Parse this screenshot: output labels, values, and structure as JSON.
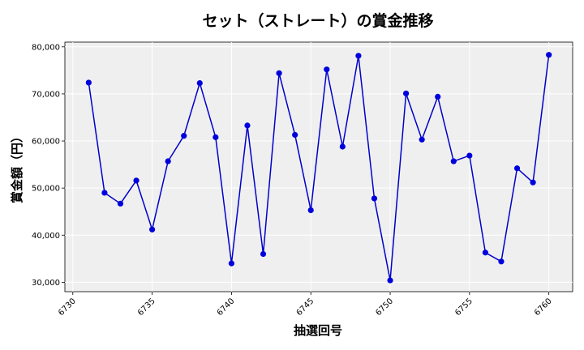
{
  "chart_data": {
    "type": "line",
    "title": "セット（ストレート）の賞金推移",
    "xlabel": "抽選回号",
    "ylabel": "賞金額（円）",
    "xlim": [
      6729.5,
      6761.5
    ],
    "ylim": [
      28000,
      81000
    ],
    "xticks": [
      6730,
      6735,
      6740,
      6745,
      6750,
      6755,
      6760
    ],
    "xtick_labels": [
      "6730",
      "6735",
      "6740",
      "6745",
      "6750",
      "6755",
      "6760"
    ],
    "yticks": [
      30000,
      40000,
      50000,
      60000,
      70000,
      80000
    ],
    "ytick_labels": [
      "30,000",
      "40,000",
      "50,000",
      "60,000",
      "70,000",
      "80,000"
    ],
    "grid": true,
    "colors": {
      "line": "#0000cc",
      "marker": "#0000dd",
      "plot_bg": "#efefef",
      "grid": "#ffffff"
    },
    "x": [
      6731,
      6732,
      6733,
      6734,
      6735,
      6736,
      6737,
      6738,
      6739,
      6740,
      6741,
      6742,
      6743,
      6744,
      6745,
      6746,
      6747,
      6748,
      6749,
      6750,
      6751,
      6752,
      6753,
      6754,
      6755,
      6756,
      6757,
      6758,
      6759,
      6760
    ],
    "y": [
      72400,
      49000,
      46700,
      51600,
      41200,
      55700,
      61100,
      72300,
      60800,
      34000,
      63300,
      36000,
      74400,
      61300,
      45300,
      75200,
      58800,
      78100,
      47800,
      30400,
      70100,
      60300,
      69400,
      55700,
      56900,
      36300,
      34400,
      54200,
      51200,
      78300
    ]
  }
}
